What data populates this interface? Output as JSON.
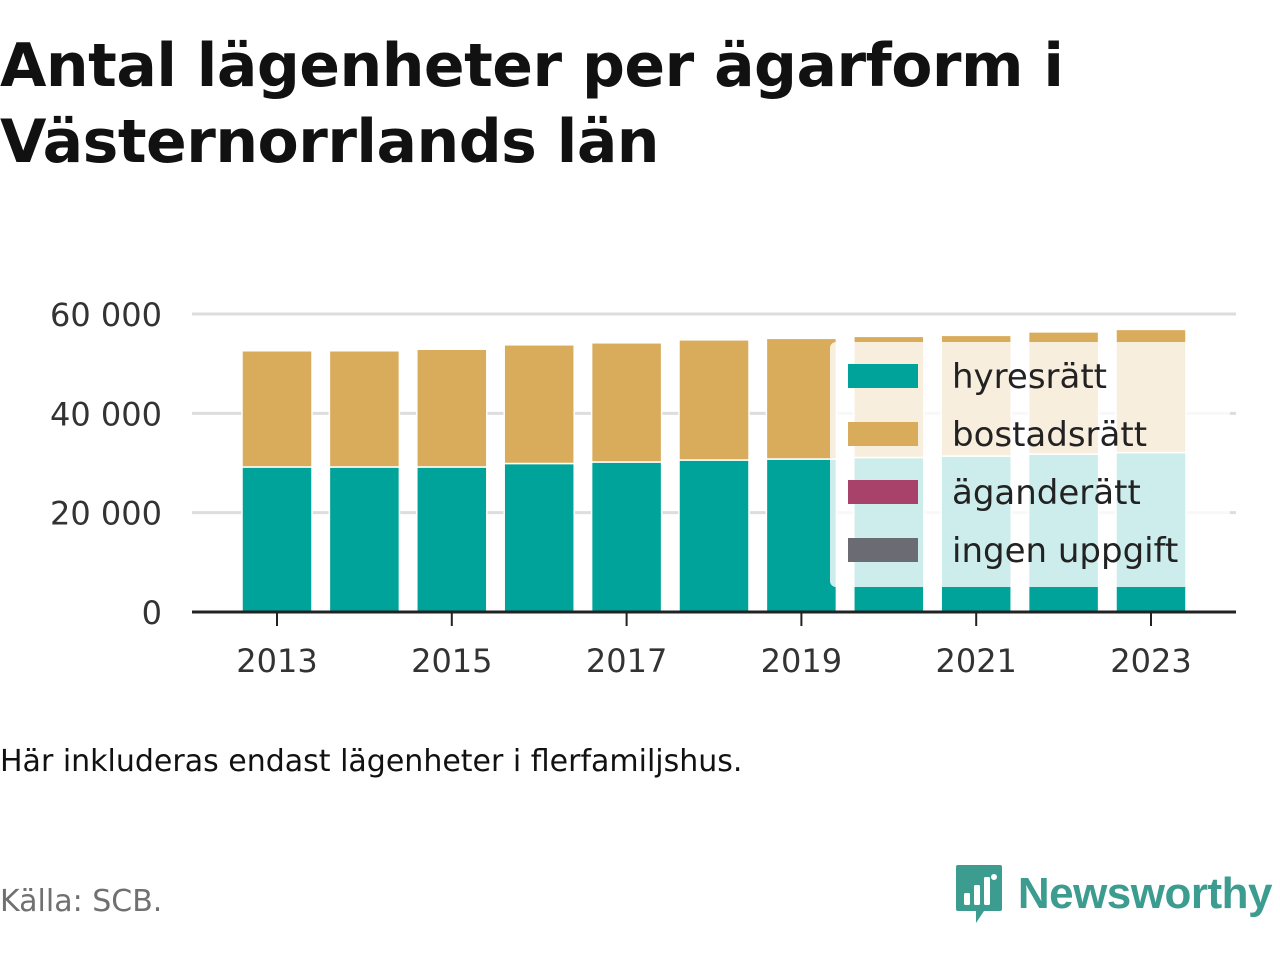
{
  "title": [
    "Antal lägenheter per ägarform i",
    "Västernorrlands län"
  ],
  "note": "Här inkluderas endast lägenheter i flerfamiljshus.",
  "source": "Källa: SCB.",
  "brand": {
    "name": "Newsworthy",
    "color": "#3b9c8f",
    "icon": "bar-chart-bubble-icon"
  },
  "chart_data": {
    "type": "bar",
    "stacked": true,
    "categories": [
      "2013",
      "2014",
      "2015",
      "2016",
      "2017",
      "2018",
      "2019",
      "2020",
      "2021",
      "2022",
      "2023"
    ],
    "x_tick_labels": [
      "2013",
      "2015",
      "2017",
      "2019",
      "2021",
      "2023"
    ],
    "series": [
      {
        "name": "hyresrätt",
        "color": "#00a39a",
        "values": [
          29200,
          29200,
          29200,
          29900,
          30200,
          30600,
          30800,
          31100,
          31400,
          31800,
          32100
        ]
      },
      {
        "name": "bostadsrätt",
        "color": "#d9ac5b",
        "values": [
          23400,
          23400,
          23700,
          23900,
          24000,
          24200,
          24300,
          24400,
          24300,
          24600,
          24800
        ]
      },
      {
        "name": "äganderätt",
        "color": "#a8426a",
        "values": [
          0,
          0,
          0,
          0,
          0,
          0,
          0,
          0,
          0,
          0,
          0
        ]
      },
      {
        "name": "ingen uppgift",
        "color": "#6b6c73",
        "values": [
          0,
          0,
          0,
          0,
          0,
          0,
          0,
          0,
          0,
          0,
          0
        ]
      }
    ],
    "y_ticks": [
      0,
      20000,
      40000,
      60000
    ],
    "y_tick_labels": [
      "0",
      "20 000",
      "40 000",
      "60 000"
    ],
    "ylim": [
      0,
      60000
    ],
    "grid": true,
    "legend_position": "right, overlapping"
  }
}
